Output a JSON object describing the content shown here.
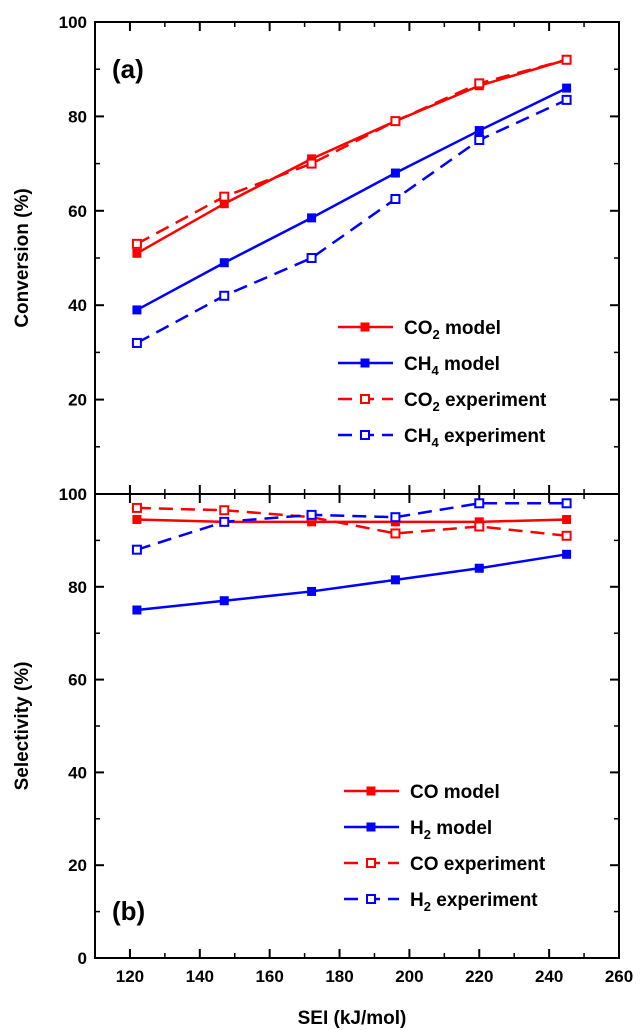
{
  "chart_data": [
    {
      "type": "line",
      "panel_label": "(a)",
      "ylabel": "Conversion (%)",
      "ylim": [
        0,
        100
      ],
      "yticks": [
        20,
        40,
        60,
        80,
        100
      ],
      "xlim": [
        110,
        260
      ],
      "grid": false,
      "legend_position": "lower-right",
      "x": [
        122,
        147,
        172,
        196,
        220,
        245
      ],
      "series": [
        {
          "name": "CO2 model",
          "label_main": "CO",
          "label_sub": "2",
          "label_rest": " model",
          "color": "#ff0000",
          "dash": "solid",
          "marker": "filled-square",
          "values": [
            51,
            61.5,
            71,
            79,
            86.5,
            92
          ]
        },
        {
          "name": "CH4 model",
          "label_main": "CH",
          "label_sub": "4",
          "label_rest": " model",
          "color": "#0000ff",
          "dash": "solid",
          "marker": "filled-square",
          "values": [
            39,
            49,
            58.5,
            68,
            77,
            86
          ]
        },
        {
          "name": "CO2 experiment",
          "label_main": "CO",
          "label_sub": "2",
          "label_rest": " experiment",
          "color": "#ff0000",
          "dash": "dashed",
          "marker": "open-square",
          "values": [
            53,
            63,
            70,
            79,
            87,
            92
          ]
        },
        {
          "name": "CH4 experiment",
          "label_main": "CH",
          "label_sub": "4",
          "label_rest": " experiment",
          "color": "#0000ff",
          "dash": "dashed",
          "marker": "open-square",
          "values": [
            32,
            42,
            50,
            62.5,
            75,
            83.5
          ]
        }
      ]
    },
    {
      "type": "line",
      "panel_label": "(b)",
      "ylabel": "Selectivity (%)",
      "xlabel": "SEI (kJ/mol)",
      "ylim": [
        0,
        100
      ],
      "yticks": [
        0,
        20,
        40,
        60,
        80,
        100
      ],
      "xlim": [
        110,
        260
      ],
      "xticks": [
        120,
        140,
        160,
        180,
        200,
        220,
        240,
        260
      ],
      "grid": false,
      "legend_position": "lower-right",
      "x": [
        122,
        147,
        172,
        196,
        220,
        245
      ],
      "series": [
        {
          "name": "CO model",
          "label_main": "CO",
          "label_sub": "",
          "label_rest": " model",
          "color": "#ff0000",
          "dash": "solid",
          "marker": "filled-square",
          "values": [
            94.5,
            94,
            94,
            94,
            94,
            94.5
          ]
        },
        {
          "name": "H2 model",
          "label_main": "H",
          "label_sub": "2",
          "label_rest": " model",
          "color": "#0000ff",
          "dash": "solid",
          "marker": "filled-square",
          "values": [
            75,
            77,
            79,
            81.5,
            84,
            87
          ]
        },
        {
          "name": "CO experiment",
          "label_main": "CO",
          "label_sub": "",
          "label_rest": " experiment",
          "color": "#ff0000",
          "dash": "dashed",
          "marker": "open-square",
          "values": [
            97,
            96.5,
            95,
            91.5,
            93,
            91
          ]
        },
        {
          "name": "H2 experiment",
          "label_main": "H",
          "label_sub": "2",
          "label_rest": " experiment",
          "color": "#0000ff",
          "dash": "dashed",
          "marker": "open-square",
          "values": [
            88,
            94,
            95.5,
            95,
            98,
            98
          ]
        }
      ]
    }
  ]
}
